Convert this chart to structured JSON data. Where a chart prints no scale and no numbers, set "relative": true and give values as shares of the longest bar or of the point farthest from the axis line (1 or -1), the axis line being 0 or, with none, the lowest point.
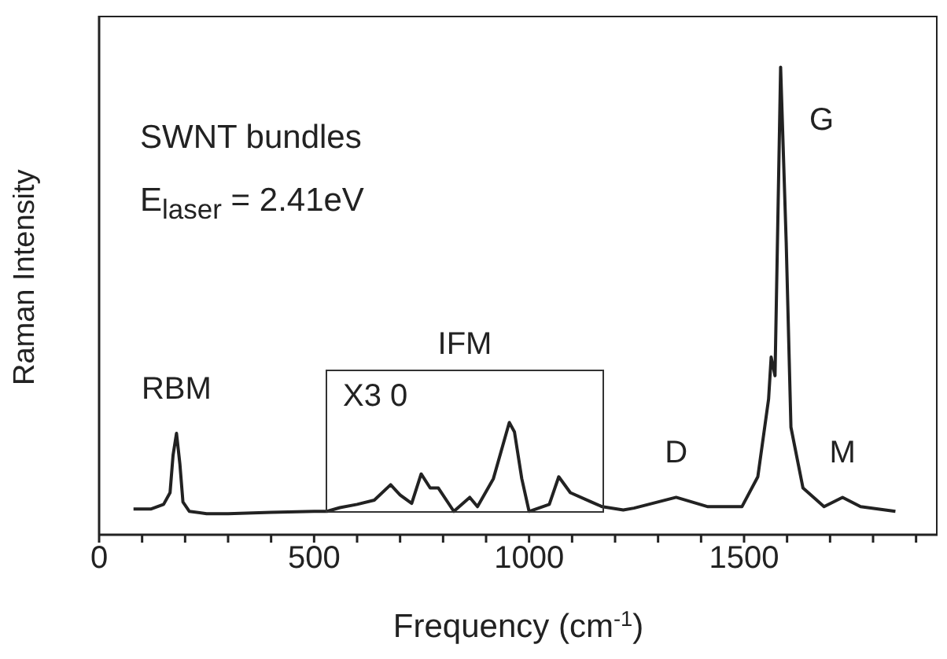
{
  "chart_data": {
    "type": "line",
    "relative": true,
    "xlabel": "Frequency (cm$^{-1}$)",
    "ylabel": "Raman Intensity",
    "xlim": [
      0,
      1950
    ],
    "xticks": [
      0,
      {
        "value": 100,
        "label": null
      },
      {
        "value": 200,
        "label": null
      },
      {
        "value": 300,
        "label": null
      },
      {
        "value": 400,
        "label": null
      },
      500,
      {
        "value": 600,
        "label": null
      },
      {
        "value": 700,
        "label": null
      },
      {
        "value": 800,
        "label": null
      },
      {
        "value": 900,
        "label": null
      },
      1000,
      {
        "value": 1100,
        "label": null
      },
      {
        "value": 1200,
        "label": null
      },
      {
        "value": 1300,
        "label": null
      },
      {
        "value": 1400,
        "label": null
      },
      1500,
      {
        "value": 1600,
        "label": null
      },
      {
        "value": 1700,
        "label": null
      },
      {
        "value": 1800,
        "label": null
      },
      {
        "value": 1900,
        "label": null
      }
    ],
    "x": [
      80,
      120,
      150,
      165,
      172,
      180,
      188,
      195,
      210,
      250,
      300,
      400,
      500,
      530,
      560,
      600,
      640,
      678,
      700,
      727,
      749,
      770,
      789,
      825,
      862,
      880,
      917,
      954,
      966,
      983,
      1000,
      1047,
      1069,
      1096,
      1145,
      1170,
      1219,
      1244,
      1342,
      1416,
      1495,
      1532,
      1557,
      1563,
      1572,
      1585,
      1598,
      1609,
      1637,
      1686,
      1729,
      1771,
      1852
    ],
    "series": [
      {
        "color": "#222222",
        "values": [
          0.055,
          0.055,
          0.065,
          0.09,
          0.17,
          0.217,
          0.15,
          0.07,
          0.05,
          0.045,
          0.045,
          0.048,
          0.05,
          0.05,
          0.058,
          0.065,
          0.074,
          0.107,
          0.085,
          0.067,
          0.13,
          0.1,
          0.1,
          0.05,
          0.08,
          0.06,
          0.12,
          0.24,
          0.22,
          0.12,
          0.05,
          0.065,
          0.124,
          0.09,
          0.07,
          0.06,
          0.053,
          0.057,
          0.08,
          0.06,
          0.06,
          0.124,
          0.29,
          0.38,
          0.34,
          1.0,
          0.625,
          0.23,
          0.1,
          0.06,
          0.08,
          0.06,
          0.05
        ]
      }
    ],
    "annotations": [
      "SWNT bundles",
      "E$_{laser}$ = 2.41eV",
      "IFM",
      "X3 0",
      {
        "text": "RBM",
        "x": 180,
        "y": 0.217
      },
      {
        "text": "D",
        "x": 1342,
        "y": 0.08
      },
      {
        "text": "G",
        "x": 1585,
        "y": 1.0
      },
      {
        "text": "M",
        "x": 1729,
        "y": 0.08
      }
    ],
    "grid": false,
    "legend": false,
    "marker": "none",
    "line_style": "solid"
  }
}
